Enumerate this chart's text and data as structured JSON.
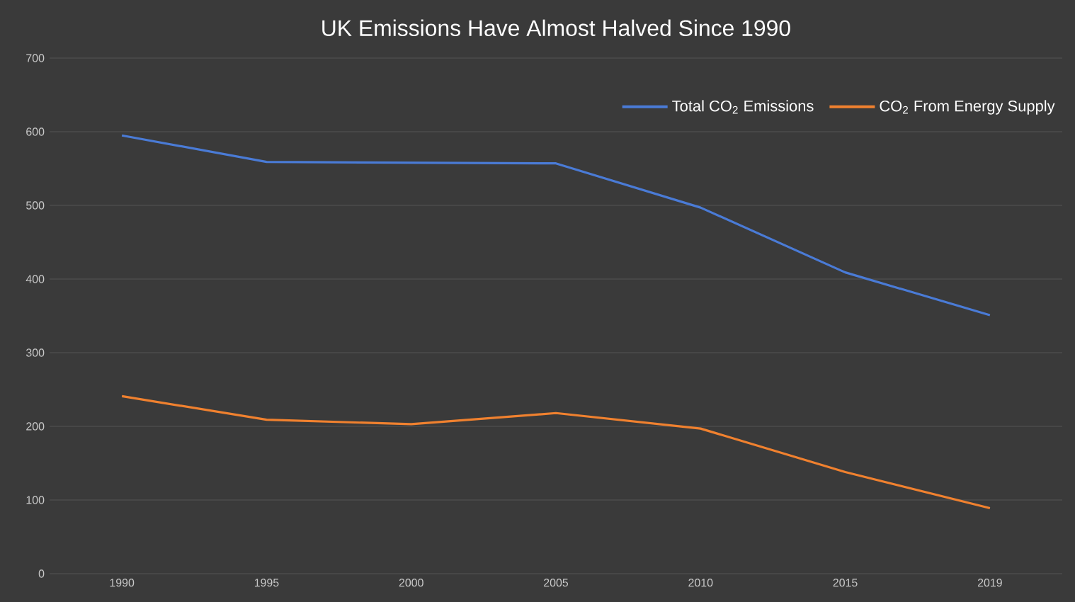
{
  "chart_data": {
    "type": "line",
    "title": "UK Emissions Have Almost Halved Since 1990",
    "categories": [
      "1990",
      "1995",
      "2000",
      "2005",
      "2010",
      "2015",
      "2019"
    ],
    "series": [
      {
        "name": "Total CO$_{2}$ Emissions",
        "color": "#4a7bd6",
        "values": [
          595,
          559,
          558,
          557,
          497,
          409,
          351
        ]
      },
      {
        "name": "CO$_{2}$ From Energy Supply",
        "color": "#f0812f",
        "values": [
          241,
          209,
          203,
          218,
          197,
          138,
          89
        ]
      }
    ],
    "ylim": [
      0,
      700
    ],
    "yticks": [
      0,
      100,
      200,
      300,
      400,
      500,
      600,
      700
    ],
    "grid": "y",
    "legend": "top right",
    "marker": "none",
    "line_style": "solid"
  }
}
